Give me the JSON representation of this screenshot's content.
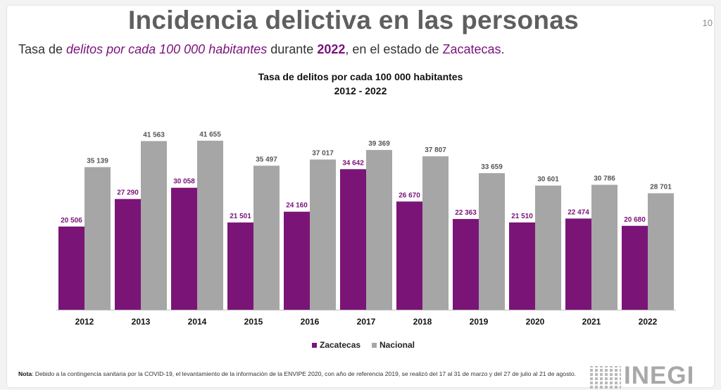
{
  "header": {
    "title": "Incidencia delictiva en las personas",
    "page_number": "10",
    "subtitle": {
      "prefix": "Tasa de ",
      "emphasis": "delitos por cada 100 000 habitantes",
      "middle": " durante ",
      "year": "2022",
      "middle2": ", en el estado de ",
      "state": "Zacatecas",
      "suffix": "."
    }
  },
  "colors": {
    "zacatecas": "#7a1577",
    "nacional": "#a6a6a6",
    "axis": "#bfbfbf"
  },
  "chart_data": {
    "type": "bar",
    "title": "Tasa de delitos por cada 100 000 habitantes",
    "subtitle": "2012 - 2022",
    "categories": [
      "2012",
      "2013",
      "2014",
      "2015",
      "2016",
      "2017",
      "2018",
      "2019",
      "2020",
      "2021",
      "2022"
    ],
    "series": [
      {
        "name": "Zacatecas",
        "values": [
          20506,
          27290,
          30058,
          21501,
          24160,
          34642,
          26670,
          22363,
          21510,
          22474,
          20680
        ],
        "labels": [
          "20 506",
          "27 290",
          "30 058",
          "21 501",
          "24 160",
          "34 642",
          "26 670",
          "22 363",
          "21 510",
          "22 474",
          "20 680"
        ]
      },
      {
        "name": "Nacional",
        "values": [
          35139,
          41563,
          41655,
          35497,
          37017,
          39369,
          37807,
          33659,
          30601,
          30786,
          28701
        ],
        "labels": [
          "35 139",
          "41 563",
          "41 655",
          "35 497",
          "37 017",
          "39 369",
          "37 807",
          "33 659",
          "30 601",
          "30 786",
          "28 701"
        ]
      }
    ],
    "ylim": [
      0,
      42500
    ],
    "legend": "bottom-center",
    "grid": false
  },
  "footer": {
    "note_label": "Nota",
    "note_text": ": Debido a la contingencia sanitaria por la COVID-19, el levantamiento de la información de la ENVIPE 2020, con año de referencia 2019, se realizó del 17 al 31 de marzo y del 27 de julio al 21 de agosto.",
    "logo": "INEGI"
  }
}
